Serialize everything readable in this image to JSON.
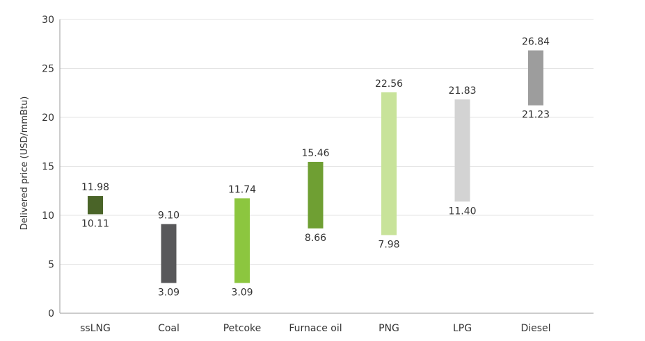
{
  "chart_data": {
    "type": "bar",
    "subtype": "floating-range",
    "ylabel": "Delivered price (USD/mmBtu)",
    "ylim": [
      0,
      30
    ],
    "yticks": [
      "0",
      "5",
      "10",
      "15",
      "20",
      "25",
      "30"
    ],
    "grid": true,
    "categories": [
      "ssLNG",
      "Coal",
      "Petcoke",
      "Furnace oil",
      "PNG",
      "LPG",
      "Diesel"
    ],
    "low": [
      10.11,
      3.09,
      3.09,
      8.66,
      7.98,
      11.4,
      21.23
    ],
    "high": [
      11.98,
      9.1,
      11.74,
      15.46,
      22.56,
      21.83,
      26.84
    ],
    "low_labels": [
      "10.11",
      "3.09",
      "3.09",
      "8.66",
      "7.98",
      "11.40",
      "21.23"
    ],
    "high_labels": [
      "11.98",
      "9.10",
      "11.74",
      "15.46",
      "22.56",
      "21.83",
      "26.84"
    ],
    "colors": [
      "#4a6428",
      "#58585a",
      "#8cc63f",
      "#6f9f33",
      "#c8e39a",
      "#d3d3d3",
      "#9d9d9d"
    ]
  }
}
